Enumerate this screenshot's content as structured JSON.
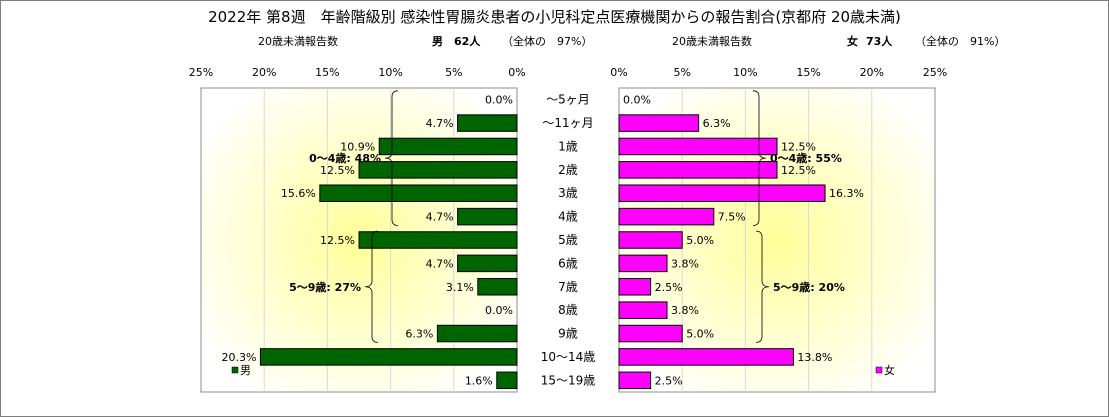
{
  "title": "2022年 第8週　年齢階級別 感染性胃腸炎患者の小児科定点医療機関からの報告割合(京都府 20歳未満)",
  "male_header": {
    "count_label": "20歳未満報告数",
    "sex": "男",
    "count": "62人",
    "share": "（全体の　97%）"
  },
  "female_header": {
    "count_label": "20歳未満報告数",
    "sex": "女",
    "count": "73人",
    "share": "（全体の　91%）"
  },
  "chart_data": {
    "type": "bar",
    "orientation": "horizontal-population-pyramid",
    "categories": [
      "~5ヶ月",
      "~11ヶ月",
      "1歳",
      "2歳",
      "3歳",
      "4歳",
      "5歳",
      "6歳",
      "7歳",
      "8歳",
      "9歳",
      "10~14歳",
      "15~19歳"
    ],
    "category_labels": [
      "～5ヶ月",
      "～11ヶ月",
      "1歳",
      "2歳",
      "3歳",
      "4歳",
      "5歳",
      "6歳",
      "7歳",
      "8歳",
      "9歳",
      "10～14歳",
      "15～19歳"
    ],
    "series": [
      {
        "name": "男",
        "color": "#006400",
        "values": [
          0.0,
          4.7,
          10.9,
          12.5,
          15.6,
          4.7,
          12.5,
          4.7,
          3.1,
          0.0,
          6.3,
          20.3,
          1.6
        ],
        "labels": [
          "0.0%",
          "4.7%",
          "10.9%",
          "12.5%",
          "15.6%",
          "4.7%",
          "12.5%",
          "4.7%",
          "3.1%",
          "0.0%",
          "6.3%",
          "20.3%",
          "1.6%"
        ]
      },
      {
        "name": "女",
        "color": "#ff00ff",
        "values": [
          0.0,
          6.3,
          12.5,
          12.5,
          16.3,
          7.5,
          5.0,
          3.8,
          2.5,
          3.8,
          5.0,
          13.8,
          2.5
        ],
        "labels": [
          "0.0%",
          "6.3%",
          "12.5%",
          "12.5%",
          "16.3%",
          "7.5%",
          "5.0%",
          "3.8%",
          "2.5%",
          "3.8%",
          "5.0%",
          "13.8%",
          "2.5%"
        ]
      }
    ],
    "xlim": [
      0,
      25
    ],
    "male_ticks": [
      "25%",
      "20%",
      "15%",
      "10%",
      "5%",
      "0%"
    ],
    "female_ticks": [
      "0%",
      "5%",
      "10%",
      "15%",
      "20%",
      "25%"
    ],
    "tick_values": [
      0,
      5,
      10,
      15,
      20,
      25
    ],
    "grid": true,
    "annotations": {
      "male": [
        {
          "text": "0～4歳: 48%",
          "from": 0,
          "to": 5
        },
        {
          "text": "5～9歳: 27%",
          "from": 6,
          "to": 10
        }
      ],
      "female": [
        {
          "text": "0～4歳: 55%",
          "from": 0,
          "to": 5
        },
        {
          "text": "5～9歳: 20%",
          "from": 6,
          "to": 10
        }
      ]
    },
    "legend": {
      "male": "男",
      "female": "女",
      "placement": "bottom-inside"
    }
  }
}
